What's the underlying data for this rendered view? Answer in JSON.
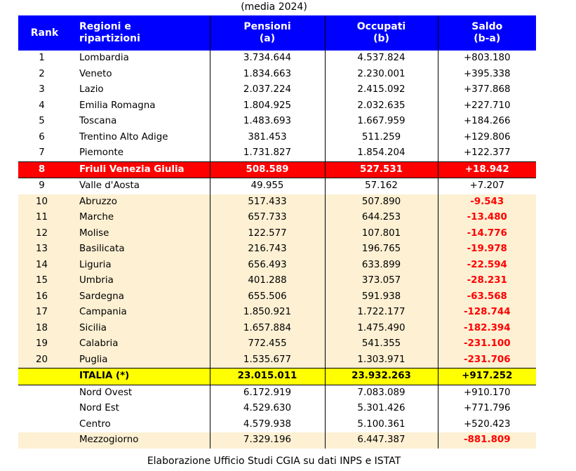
{
  "subtitle": "(media 2024)",
  "header": {
    "rank": "Rank",
    "region_line1": "Regioni e",
    "region_line2": "ripartizioni",
    "pensions_line1": "Pensioni",
    "pensions_line2": "(a)",
    "employed_line1": "Occupati",
    "employed_line2": "(b)",
    "balance_line1": "Saldo",
    "balance_line2": "(b-a)"
  },
  "rows": [
    {
      "rank": "1",
      "region": "Lombardia",
      "pensioni": "3.734.644",
      "occupati": "4.537.824",
      "saldo": "+803.180"
    },
    {
      "rank": "2",
      "region": "Veneto",
      "pensioni": "1.834.663",
      "occupati": "2.230.001",
      "saldo": "+395.338"
    },
    {
      "rank": "3",
      "region": "Lazio",
      "pensioni": "2.037.224",
      "occupati": "2.415.092",
      "saldo": "+377.868"
    },
    {
      "rank": "4",
      "region": "Emilia Romagna",
      "pensioni": "1.804.925",
      "occupati": "2.032.635",
      "saldo": "+227.710"
    },
    {
      "rank": "5",
      "region": "Toscana",
      "pensioni": "1.483.693",
      "occupati": "1.667.959",
      "saldo": "+184.266"
    },
    {
      "rank": "6",
      "region": "Trentino Alto Adige",
      "pensioni": "381.453",
      "occupati": "511.259",
      "saldo": "+129.806"
    },
    {
      "rank": "7",
      "region": "Piemonte",
      "pensioni": "1.731.827",
      "occupati": "1.854.204",
      "saldo": "+122.377"
    },
    {
      "rank": "8",
      "region": "Friuli Venezia Giulia",
      "pensioni": "508.589",
      "occupati": "527.531",
      "saldo": "+18.942"
    },
    {
      "rank": "9",
      "region": "Valle d'Aosta",
      "pensioni": "49.955",
      "occupati": "57.162",
      "saldo": "+7.207"
    },
    {
      "rank": "10",
      "region": "Abruzzo",
      "pensioni": "517.433",
      "occupati": "507.890",
      "saldo": "-9.543"
    },
    {
      "rank": "11",
      "region": "Marche",
      "pensioni": "657.733",
      "occupati": "644.253",
      "saldo": "-13.480"
    },
    {
      "rank": "12",
      "region": "Molise",
      "pensioni": "122.577",
      "occupati": "107.801",
      "saldo": "-14.776"
    },
    {
      "rank": "13",
      "region": "Basilicata",
      "pensioni": "216.743",
      "occupati": "196.765",
      "saldo": "-19.978"
    },
    {
      "rank": "14",
      "region": "Liguria",
      "pensioni": "656.493",
      "occupati": "633.899",
      "saldo": "-22.594"
    },
    {
      "rank": "15",
      "region": "Umbria",
      "pensioni": "401.288",
      "occupati": "373.057",
      "saldo": "-28.231"
    },
    {
      "rank": "16",
      "region": "Sardegna",
      "pensioni": "655.506",
      "occupati": "591.938",
      "saldo": "-63.568"
    },
    {
      "rank": "17",
      "region": "Campania",
      "pensioni": "1.850.921",
      "occupati": "1.722.177",
      "saldo": "-128.744"
    },
    {
      "rank": "18",
      "region": "Sicilia",
      "pensioni": "1.657.884",
      "occupati": "1.475.490",
      "saldo": "-182.394"
    },
    {
      "rank": "19",
      "region": "Calabria",
      "pensioni": "772.455",
      "occupati": "541.355",
      "saldo": "-231.100"
    },
    {
      "rank": "20",
      "region": "Puglia",
      "pensioni": "1.535.677",
      "occupati": "1.303.971",
      "saldo": "-231.706"
    }
  ],
  "italia": {
    "rank": "",
    "region": "ITALIA (*)",
    "pensioni": "23.015.011",
    "occupati": "23.932.263",
    "saldo": "+917.252"
  },
  "areas": [
    {
      "rank": "",
      "region": "Nord Ovest",
      "pensioni": "6.172.919",
      "occupati": "7.083.089",
      "saldo": "+910.170"
    },
    {
      "rank": "",
      "region": "Nord Est",
      "pensioni": "4.529.630",
      "occupati": "5.301.426",
      "saldo": "+771.796"
    },
    {
      "rank": "",
      "region": "Centro",
      "pensioni": "4.579.938",
      "occupati": "5.100.361",
      "saldo": "+520.423"
    },
    {
      "rank": "",
      "region": "Mezzogiorno",
      "pensioni": "7.329.196",
      "occupati": "6.447.387",
      "saldo": "-881.809"
    }
  ],
  "footer": "Elaborazione Ufficio Studi CGIA su dati INPS e ISTAT"
}
